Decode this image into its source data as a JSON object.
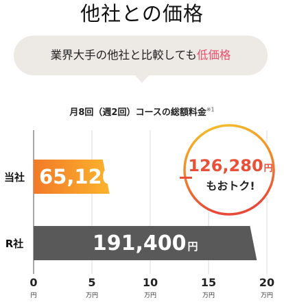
{
  "header": {
    "title": "他社との価格",
    "bubble_prefix": "業界大手の他社と比較しても",
    "bubble_highlight": "低価格",
    "accent_color": "#e8506b"
  },
  "chart_data": {
    "type": "bar",
    "orientation": "horizontal",
    "title": "月8回（週2回）コースの総額料金",
    "title_note": "※1",
    "categories": [
      "当社",
      "R社"
    ],
    "values": [
      65120,
      191400
    ],
    "value_labels": [
      "65,120",
      "191,400"
    ],
    "value_unit": "円",
    "bar_colors": [
      [
        "#f27a28",
        "#fbb32d"
      ],
      [
        "#595959",
        "#595959"
      ]
    ],
    "xlim": [
      0,
      200000
    ],
    "xticks": [
      0,
      50000,
      100000,
      150000,
      200000
    ],
    "xtick_labels": [
      "0",
      "5",
      "10",
      "15",
      "20"
    ],
    "xtick_units": [
      "円",
      "万円",
      "万円",
      "万円",
      "万円"
    ],
    "grid": true,
    "callout": {
      "amount": "126,280",
      "unit": "円",
      "text": "もおトク!",
      "color": "#e8503a",
      "ring_colors": [
        "#f3c22c",
        "#f08a2a",
        "#e84a3a"
      ]
    }
  }
}
